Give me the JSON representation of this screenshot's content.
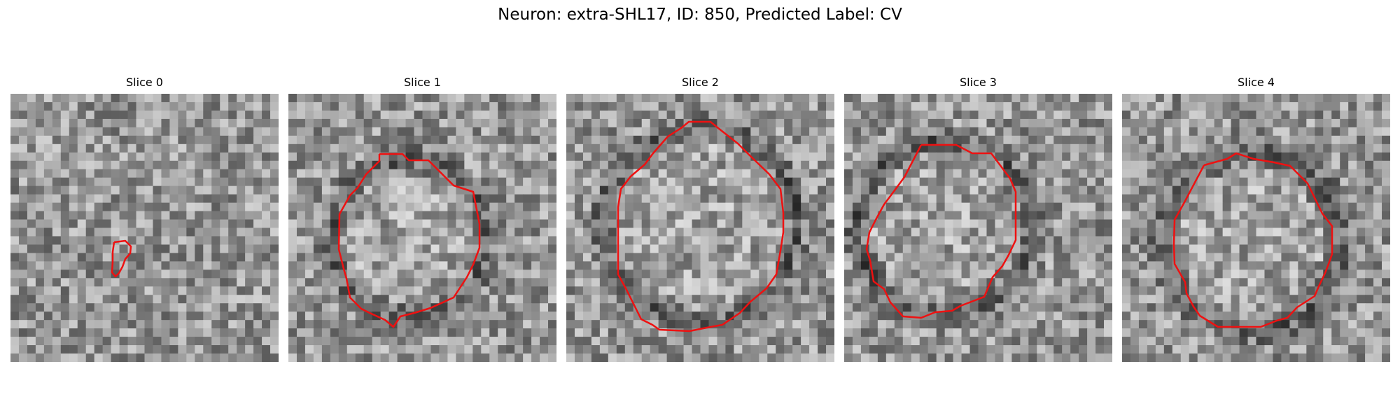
{
  "figure": {
    "title": "Neuron: extra-SHL17, ID: 850, Predicted Label: CV",
    "contour_color": "#ee1111",
    "panels": [
      {
        "title": "Slice 0"
      },
      {
        "title": "Slice 1"
      },
      {
        "title": "Slice 2"
      },
      {
        "title": "Slice 3"
      },
      {
        "title": "Slice 4"
      }
    ]
  }
}
